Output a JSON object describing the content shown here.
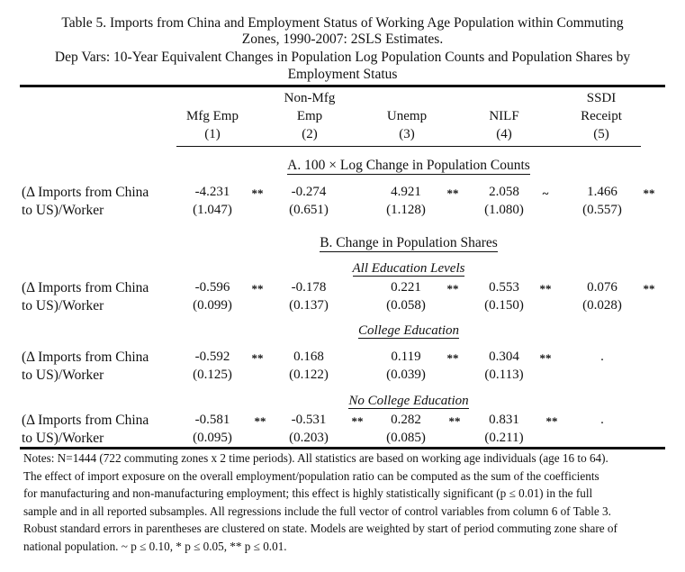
{
  "title": {
    "line1": "Table 5. Imports from China and Employment Status of Working Age Population within Commuting",
    "line2": "Zones, 1990-2007: 2SLS Estimates.",
    "line3": "Dep Vars: 10-Year Equivalent Changes in Population Log Population Counts and Population Shares by",
    "line4": "Employment Status"
  },
  "columns": [
    {
      "line1": "",
      "line2": "Mfg Emp",
      "num": "(1)"
    },
    {
      "line1": "Non-Mfg",
      "line2": "Emp",
      "num": "(2)"
    },
    {
      "line1": "",
      "line2": "Unemp",
      "num": "(3)"
    },
    {
      "line1": "",
      "line2": "NILF",
      "num": "(4)"
    },
    {
      "line1": "SSDI",
      "line2": "Receipt",
      "num": "(5)"
    }
  ],
  "row_label": {
    "line1": "(Δ Imports from China",
    "line2": "to US)/Worker"
  },
  "panels": {
    "a": "A. 100 × Log Change in Population Counts",
    "b": "B. Change in Population Shares"
  },
  "subpanels": {
    "all": "All Education Levels",
    "college": "College Education",
    "nocollege": "No College Education"
  },
  "rows": {
    "a": {
      "coef": [
        "-4.231",
        "-0.274",
        "4.921",
        "2.058",
        "1.466"
      ],
      "se": [
        "(1.047)",
        "(0.651)",
        "(1.128)",
        "(1.080)",
        "(0.557)"
      ],
      "stars": [
        "**",
        "",
        "**",
        "~",
        "**"
      ]
    },
    "b1": {
      "coef": [
        "-0.596",
        "-0.178",
        "0.221",
        "0.553",
        "0.076"
      ],
      "se": [
        "(0.099)",
        "(0.137)",
        "(0.058)",
        "(0.150)",
        "(0.028)"
      ],
      "stars": [
        "**",
        "",
        "**",
        "**",
        "**"
      ]
    },
    "b2": {
      "coef": [
        "-0.592",
        "0.168",
        "0.119",
        "0.304",
        "."
      ],
      "se": [
        "(0.125)",
        "(0.122)",
        "(0.039)",
        "(0.113)",
        ""
      ],
      "stars": [
        "**",
        "",
        "**",
        "**",
        ""
      ]
    },
    "b3": {
      "coef": [
        "-0.581",
        "-0.531",
        "0.282",
        "0.831",
        "."
      ],
      "se": [
        "(0.095)",
        "(0.203)",
        "(0.085)",
        "(0.211)",
        ""
      ],
      "stars": [
        "**",
        "**",
        "**",
        "**",
        ""
      ]
    }
  },
  "notes": [
    "Notes: N=1444 (722 commuting zones x 2 time periods). All statistics are based on working age individuals (age 16 to 64).",
    "The effect of import exposure on the overall employment/population ratio can be computed as the sum of the coefficients",
    "for manufacturing and non-manufacturing employment; this effect is highly statistically significant (p ≤ 0.01) in the full",
    "sample and in all reported subsamples. All regressions include the full vector of control variables from column 6 of Table 3.",
    "Robust standard errors in parentheses are clustered on state. Models are weighted by start of period commuting zone share of",
    "national population.  ~ p ≤ 0.10, * p ≤ 0.05, ** p ≤ 0.01."
  ]
}
